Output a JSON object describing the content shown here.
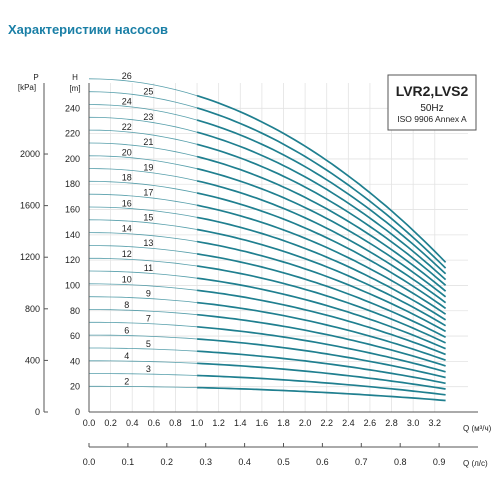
{
  "page_title": "Характеристики насосов",
  "colors": {
    "title": "#1a7fa6",
    "curve": "#1f7f8f",
    "grid": "#e3e3e3"
  },
  "chart_data": {
    "type": "line",
    "title": "",
    "info": {
      "model": "LVR2,LVS2",
      "frequency": "50Hz",
      "standard": "ISO 9906 Annex A"
    },
    "axes": {
      "p_label": "P",
      "p_unit": "[kPa]",
      "h_label": "H",
      "h_unit": "[m]",
      "q_label": "Q (м³/ч)",
      "q2_label": "Q (л/с)"
    },
    "x_ticks": [
      "0.0",
      "0.2",
      "0.4",
      "0.6",
      "0.8",
      "1.0",
      "1.2",
      "1.4",
      "1.6",
      "1.8",
      "2.0",
      "2.2",
      "2.4",
      "2.6",
      "2.8",
      "3.0",
      "3.2"
    ],
    "x_values": [
      0,
      0.2,
      0.4,
      0.6,
      0.8,
      1.0,
      1.2,
      1.4,
      1.6,
      1.8,
      2.0,
      2.2,
      2.4,
      2.6,
      2.8,
      3.0,
      3.2
    ],
    "x2_ticks": [
      "0.0",
      "0.1",
      "0.2",
      "0.3",
      "0.4",
      "0.5",
      "0.6",
      "0.7",
      "0.8",
      "0.9"
    ],
    "x2_values": [
      0,
      0.1,
      0.2,
      0.3,
      0.4,
      0.5,
      0.6,
      0.7,
      0.8,
      0.9
    ],
    "h_ticks": [
      "0",
      "20",
      "40",
      "60",
      "80",
      "100",
      "120",
      "140",
      "160",
      "180",
      "200",
      "220",
      "240"
    ],
    "h_values": [
      0,
      20,
      40,
      60,
      80,
      100,
      120,
      140,
      160,
      180,
      200,
      220,
      240
    ],
    "p_ticks": [
      "0",
      "400",
      "800",
      "1200",
      "1600",
      "2000"
    ],
    "p_values": [
      0,
      400,
      800,
      1200,
      1600,
      2000
    ],
    "xlim": [
      0,
      3.6
    ],
    "ylim": [
      0,
      260
    ],
    "operating_range_q": [
      1.0,
      3.3
    ],
    "series": [
      {
        "name": "2",
        "points": [
          [
            0,
            20.3
          ],
          [
            1.0,
            19.5
          ],
          [
            2.0,
            16.4
          ],
          [
            3.3,
            9.1
          ]
        ]
      },
      {
        "name": "3",
        "points": [
          [
            0,
            30.4
          ],
          [
            1.0,
            29.2
          ],
          [
            2.0,
            24.6
          ],
          [
            3.3,
            13.6
          ]
        ]
      },
      {
        "name": "4",
        "points": [
          [
            0,
            40.5
          ],
          [
            1.0,
            39.0
          ],
          [
            2.0,
            32.8
          ],
          [
            3.3,
            18.2
          ]
        ]
      },
      {
        "name": "5",
        "points": [
          [
            0,
            50.6
          ],
          [
            1.0,
            48.7
          ],
          [
            2.0,
            41.0
          ],
          [
            3.3,
            22.7
          ]
        ]
      },
      {
        "name": "6",
        "points": [
          [
            0,
            60.8
          ],
          [
            1.0,
            58.4
          ],
          [
            2.0,
            49.2
          ],
          [
            3.3,
            27.3
          ]
        ]
      },
      {
        "name": "7",
        "points": [
          [
            0,
            70.9
          ],
          [
            1.0,
            68.2
          ],
          [
            2.0,
            57.4
          ],
          [
            3.3,
            31.8
          ]
        ]
      },
      {
        "name": "8",
        "points": [
          [
            0,
            81.0
          ],
          [
            1.0,
            77.9
          ],
          [
            2.0,
            65.6
          ],
          [
            3.3,
            36.4
          ]
        ]
      },
      {
        "name": "9",
        "points": [
          [
            0,
            91.1
          ],
          [
            1.0,
            87.6
          ],
          [
            2.0,
            73.8
          ],
          [
            3.3,
            40.9
          ]
        ]
      },
      {
        "name": "10",
        "points": [
          [
            0,
            101.3
          ],
          [
            1.0,
            97.4
          ],
          [
            2.0,
            82.0
          ],
          [
            3.3,
            45.5
          ]
        ]
      },
      {
        "name": "11",
        "points": [
          [
            0,
            111.4
          ],
          [
            1.0,
            107.1
          ],
          [
            2.0,
            90.2
          ],
          [
            3.3,
            50.0
          ]
        ]
      },
      {
        "name": "12",
        "points": [
          [
            0,
            121.5
          ],
          [
            1.0,
            116.9
          ],
          [
            2.0,
            98.4
          ],
          [
            3.3,
            54.6
          ]
        ]
      },
      {
        "name": "13",
        "points": [
          [
            0,
            131.6
          ],
          [
            1.0,
            126.6
          ],
          [
            2.0,
            106.6
          ],
          [
            3.3,
            59.1
          ]
        ]
      },
      {
        "name": "14",
        "points": [
          [
            0,
            141.8
          ],
          [
            1.0,
            136.3
          ],
          [
            2.0,
            114.8
          ],
          [
            3.3,
            63.7
          ]
        ]
      },
      {
        "name": "15",
        "points": [
          [
            0,
            151.9
          ],
          [
            1.0,
            146.1
          ],
          [
            2.0,
            123.0
          ],
          [
            3.3,
            68.2
          ]
        ]
      },
      {
        "name": "16",
        "points": [
          [
            0,
            162.0
          ],
          [
            1.0,
            155.8
          ],
          [
            2.0,
            131.2
          ],
          [
            3.3,
            72.8
          ]
        ]
      },
      {
        "name": "17",
        "points": [
          [
            0,
            172.1
          ],
          [
            1.0,
            165.5
          ],
          [
            2.0,
            139.4
          ],
          [
            3.3,
            77.3
          ]
        ]
      },
      {
        "name": "18",
        "points": [
          [
            0,
            182.3
          ],
          [
            1.0,
            175.3
          ],
          [
            2.0,
            147.6
          ],
          [
            3.3,
            81.9
          ]
        ]
      },
      {
        "name": "19",
        "points": [
          [
            0,
            192.4
          ],
          [
            1.0,
            185.0
          ],
          [
            2.0,
            155.8
          ],
          [
            3.3,
            86.4
          ]
        ]
      },
      {
        "name": "20",
        "points": [
          [
            0,
            202.5
          ],
          [
            1.0,
            194.8
          ],
          [
            2.0,
            164.0
          ],
          [
            3.3,
            91.0
          ]
        ]
      },
      {
        "name": "21",
        "points": [
          [
            0,
            212.6
          ],
          [
            1.0,
            204.5
          ],
          [
            2.0,
            172.2
          ],
          [
            3.3,
            95.5
          ]
        ]
      },
      {
        "name": "22",
        "points": [
          [
            0,
            222.8
          ],
          [
            1.0,
            214.2
          ],
          [
            2.0,
            180.4
          ],
          [
            3.3,
            100.1
          ]
        ]
      },
      {
        "name": "23",
        "points": [
          [
            0,
            232.9
          ],
          [
            1.0,
            224.0
          ],
          [
            2.0,
            188.6
          ],
          [
            3.3,
            104.6
          ]
        ]
      },
      {
        "name": "24",
        "points": [
          [
            0,
            243.0
          ],
          [
            1.0,
            233.7
          ],
          [
            2.0,
            196.8
          ],
          [
            3.3,
            109.2
          ]
        ]
      },
      {
        "name": "25",
        "points": [
          [
            0,
            253.1
          ],
          [
            1.0,
            243.4
          ],
          [
            2.0,
            205.0
          ],
          [
            3.3,
            113.7
          ]
        ]
      },
      {
        "name": "26",
        "points": [
          [
            0,
            263.3
          ],
          [
            1.0,
            253.2
          ],
          [
            2.0,
            213.2
          ],
          [
            3.3,
            118.3
          ]
        ]
      }
    ]
  }
}
